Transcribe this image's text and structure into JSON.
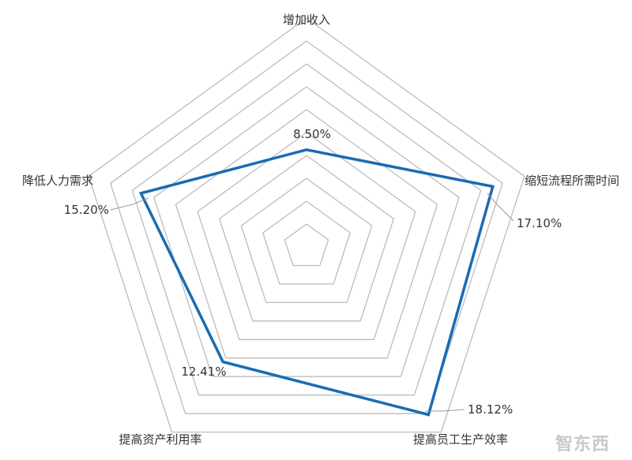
{
  "chart_data": {
    "type": "radar",
    "categories": [
      "增加收入",
      "缩短流程所需时间",
      "提高员工生产效率",
      "提高资产利用率",
      "降低人力需求"
    ],
    "values": [
      8.5,
      17.1,
      18.12,
      12.41,
      15.2
    ],
    "value_labels": [
      "8.50%",
      "17.10%",
      "18.12%",
      "12.41%",
      "15.20%"
    ],
    "rmax": 20,
    "rings": 10,
    "colors": {
      "series": "#1a6bb2",
      "grid": "#bcbcbc",
      "leader": "#999999"
    }
  },
  "watermark": "智东西"
}
